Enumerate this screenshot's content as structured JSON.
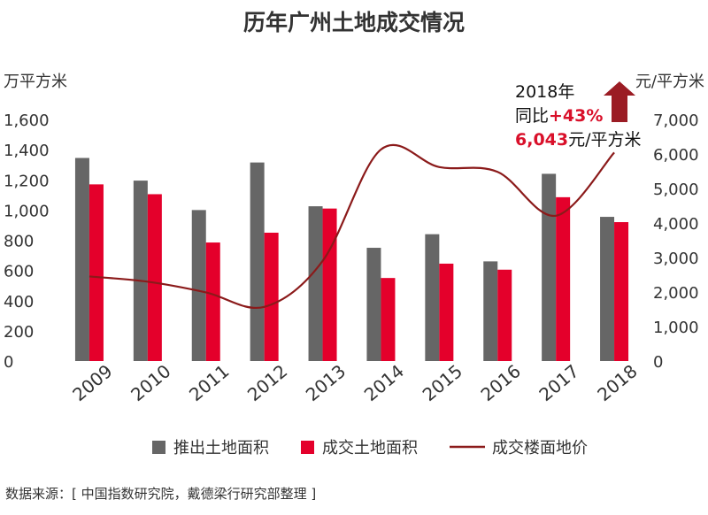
{
  "colors": {
    "supply": "#666666",
    "transacted": "#e4002b",
    "price_line": "#8b1a1a",
    "arrow": "#9b1c24",
    "highlight": "#d9102a"
  },
  "chart_data": {
    "type": "bar",
    "title": "历年广州土地成交情况",
    "categories": [
      "2009",
      "2010",
      "2011",
      "2012",
      "2013",
      "2014",
      "2015",
      "2016",
      "2017",
      "2018"
    ],
    "y_left": {
      "unit": "万平方米",
      "range": [
        0,
        1600
      ],
      "ticks": [
        0,
        200,
        400,
        600,
        800,
        1000,
        1200,
        1400,
        1600
      ],
      "tick_labels": [
        "0",
        "200",
        "400",
        "600",
        "800",
        "1,000",
        "1,200",
        "1,400",
        "1,600"
      ]
    },
    "y_right": {
      "unit": "元/平方米",
      "range": [
        0,
        7000
      ],
      "ticks": [
        0,
        1000,
        2000,
        3000,
        4000,
        5000,
        6000,
        7000
      ],
      "tick_labels": [
        "0",
        "1,000",
        "2,000",
        "3,000",
        "4,000",
        "5,000",
        "6,000",
        "7,000"
      ]
    },
    "series": [
      {
        "name": "推出土地面积",
        "kind": "bar",
        "axis": "left",
        "values": [
          1345,
          1195,
          1000,
          1315,
          1025,
          750,
          840,
          660,
          1240,
          955
        ]
      },
      {
        "name": "成交土地面积",
        "kind": "bar",
        "axis": "left",
        "values": [
          1170,
          1105,
          785,
          850,
          1010,
          550,
          645,
          605,
          1085,
          920
        ]
      },
      {
        "name": "成交楼面地价",
        "kind": "line",
        "axis": "right",
        "values": [
          2450,
          2300,
          1990,
          1570,
          2900,
          6130,
          5620,
          5480,
          4210,
          6043
        ]
      }
    ],
    "legend_position": "bottom",
    "grid": false,
    "annotation": {
      "line1": "2018年",
      "line2_prefix": "同比",
      "line2_value": "+43%",
      "line3_value": "6,043",
      "line3_unit": "元/平方米"
    },
    "source": "数据来源：[ 中国指数研究院，戴德梁行研究部整理 ]"
  }
}
